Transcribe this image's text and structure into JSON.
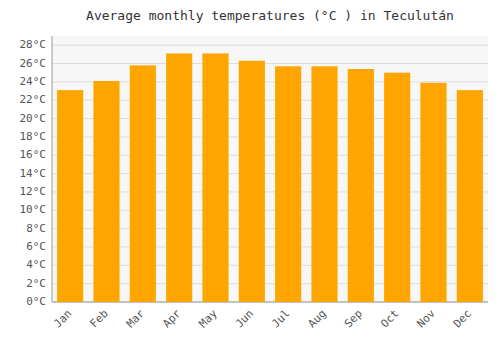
{
  "chart_data": {
    "type": "bar",
    "title": "Average monthly temperatures (°C ) in Teculután",
    "categories": [
      "Jan",
      "Feb",
      "Mar",
      "Apr",
      "May",
      "Jun",
      "Jul",
      "Aug",
      "Sep",
      "Oct",
      "Nov",
      "Dec"
    ],
    "values": [
      23.1,
      24.1,
      25.8,
      27.1,
      27.1,
      26.3,
      25.7,
      25.7,
      25.4,
      25.0,
      23.9,
      23.1
    ],
    "color": "#FFA500",
    "ylim": [
      0,
      29
    ],
    "yticks": [
      {
        "value": 0,
        "label": "0°C"
      },
      {
        "value": 2,
        "label": "2°C"
      },
      {
        "value": 4,
        "label": "4°C"
      },
      {
        "value": 6,
        "label": "6°C"
      },
      {
        "value": 8,
        "label": "8°C"
      },
      {
        "value": 10,
        "label": "10°C"
      },
      {
        "value": 12,
        "label": "12°C"
      },
      {
        "value": 14,
        "label": "14°C"
      },
      {
        "value": 16,
        "label": "16°C"
      },
      {
        "value": 18,
        "label": "18°C"
      },
      {
        "value": 20,
        "label": "20°C"
      },
      {
        "value": 22,
        "label": "22°C"
      },
      {
        "value": 24,
        "label": "24°C"
      },
      {
        "value": 26,
        "label": "26°C"
      },
      {
        "value": 28,
        "label": "28°C"
      }
    ],
    "grid": true
  }
}
